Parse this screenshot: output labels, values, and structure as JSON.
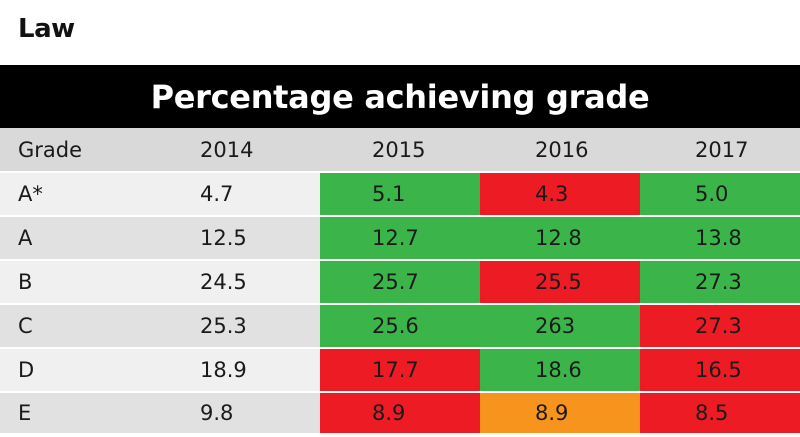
{
  "subject": "Law",
  "banner_title": "Percentage achieving grade",
  "chart_data": {
    "type": "table",
    "title": "Percentage achieving grade",
    "columns": [
      "Grade",
      "2014",
      "2015",
      "2016",
      "2017"
    ],
    "rows": [
      {
        "grade": "A*",
        "values": [
          "4.7",
          "5.1",
          "4.3",
          "5.0"
        ],
        "status": [
          "neutral",
          "up",
          "down",
          "up"
        ]
      },
      {
        "grade": "A",
        "values": [
          "12.5",
          "12.7",
          "12.8",
          "13.8"
        ],
        "status": [
          "neutral",
          "up",
          "up",
          "up"
        ]
      },
      {
        "grade": "B",
        "values": [
          "24.5",
          "25.7",
          "25.5",
          "27.3"
        ],
        "status": [
          "neutral",
          "up",
          "down",
          "up"
        ]
      },
      {
        "grade": "C",
        "values": [
          "25.3",
          "25.6",
          "263",
          "27.3"
        ],
        "status": [
          "neutral",
          "up",
          "up",
          "down"
        ]
      },
      {
        "grade": "D",
        "values": [
          "18.9",
          "17.7",
          "18.6",
          "16.5"
        ],
        "status": [
          "neutral",
          "down",
          "up",
          "down"
        ]
      },
      {
        "grade": "E",
        "values": [
          "9.8",
          "8.9",
          "8.9",
          "8.5"
        ],
        "status": [
          "neutral",
          "down",
          "same",
          "down"
        ]
      }
    ]
  },
  "colors": {
    "up": "#3bb54a",
    "down": "#ed1c24",
    "same": "#f7941d",
    "banner_background": "#000000",
    "banner_text": "#ffffff",
    "header_background": "#d9d9d9"
  }
}
